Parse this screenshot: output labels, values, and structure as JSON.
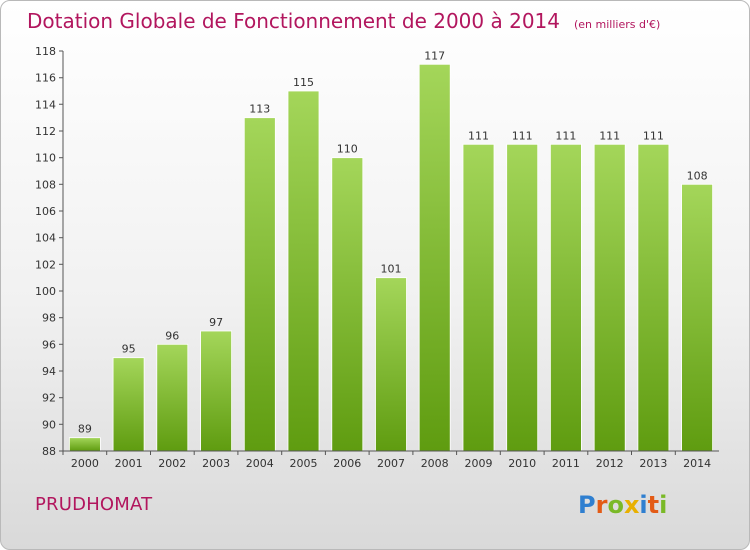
{
  "header": {
    "title": "Dotation Globale de Fonctionnement de 2000 à 2014",
    "unit": "(en milliers d'€)"
  },
  "footer": {
    "commune": "PRUDHOMAT",
    "logo_text": "Proxiti",
    "logo_colors": [
      "#2f7fd0",
      "#e35b16",
      "#7ab927",
      "#e8b000",
      "#2f7fd0",
      "#e35b16",
      "#7ab927"
    ]
  },
  "colors": {
    "bar_top": "#a4d65a",
    "bar_bottom": "#5f9c10",
    "title": "#b2165e"
  },
  "chart_data": {
    "type": "bar",
    "categories": [
      "2000",
      "2001",
      "2002",
      "2003",
      "2004",
      "2005",
      "2006",
      "2007",
      "2008",
      "2009",
      "2010",
      "2011",
      "2012",
      "2013",
      "2014"
    ],
    "values": [
      89,
      95,
      96,
      97,
      113,
      115,
      110,
      101,
      117,
      111,
      111,
      111,
      111,
      111,
      108
    ],
    "ylim": [
      88,
      118
    ],
    "yticks": [
      "88",
      "90",
      "92",
      "94",
      "96",
      "98",
      "100",
      "102",
      "104",
      "106",
      "108",
      "110",
      "112",
      "114",
      "116",
      "118"
    ],
    "grid": false
  }
}
